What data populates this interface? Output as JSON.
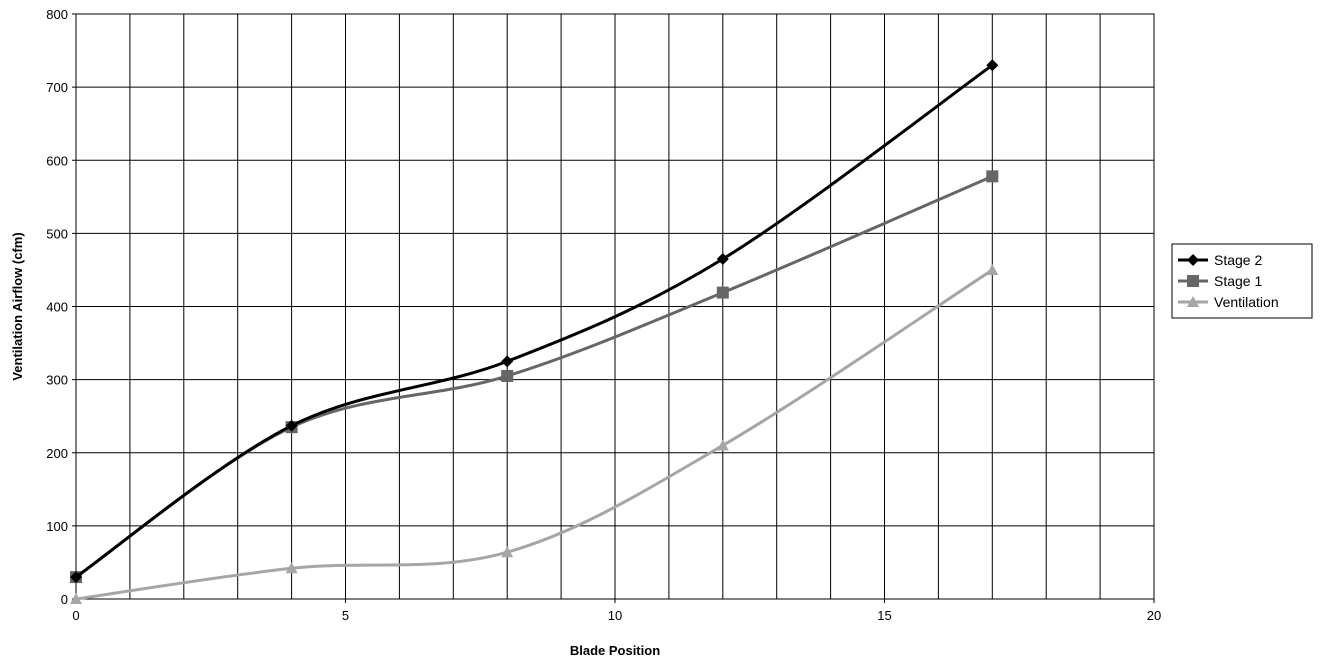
{
  "chart_data": {
    "type": "line",
    "title": "",
    "xlabel": "Blade Position",
    "ylabel": "Ventilation Airflow (cfm)",
    "xlim": [
      0,
      20
    ],
    "ylim": [
      0,
      800
    ],
    "x_ticks": [
      0,
      5,
      10,
      15,
      20
    ],
    "y_ticks": [
      0,
      100,
      200,
      300,
      400,
      500,
      600,
      700,
      800
    ],
    "x_grid_step": 1,
    "y_grid_step": 100,
    "grid": true,
    "smooth": true,
    "legend_position": "right",
    "series": [
      {
        "name": "Stage 2",
        "color": "#000000",
        "marker": "diamond",
        "x": [
          0,
          4,
          8,
          12,
          17
        ],
        "y": [
          30,
          237,
          325,
          465,
          730
        ]
      },
      {
        "name": "Stage 1",
        "color": "#666666",
        "marker": "square",
        "x": [
          0,
          4,
          8,
          12,
          17
        ],
        "y": [
          30,
          235,
          305,
          419,
          578
        ]
      },
      {
        "name": "Ventilation",
        "color": "#a6a6a6",
        "marker": "triangle",
        "x": [
          0,
          4,
          8,
          12,
          17
        ],
        "y": [
          0,
          42,
          64,
          210,
          450
        ]
      }
    ]
  }
}
